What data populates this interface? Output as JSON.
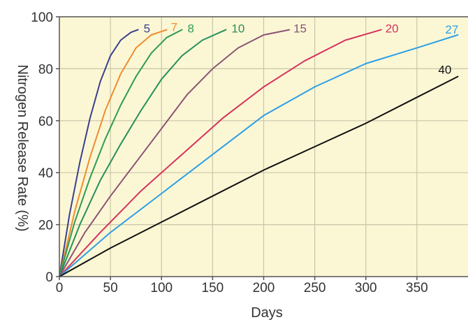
{
  "chart_data": {
    "type": "line",
    "title": "",
    "xlabel": "Days",
    "ylabel": "Nitrogen Release Rate (%)",
    "xlim": [
      0,
      400
    ],
    "ylim": [
      0,
      100
    ],
    "x_ticks": [
      "0",
      "50",
      "100",
      "150",
      "200",
      "250",
      "300",
      "350"
    ],
    "y_ticks": [
      "0",
      "20",
      "40",
      "60",
      "80",
      "100"
    ],
    "grid": true,
    "background": "#fbf7d5",
    "series": [
      {
        "name": "5",
        "color": "#3a3f8f",
        "x": [
          0,
          10,
          20,
          30,
          40,
          50,
          60,
          70,
          77
        ],
        "y": [
          0,
          24,
          44,
          61,
          75,
          85,
          91,
          94,
          95
        ]
      },
      {
        "name": "7",
        "color": "#f08c2e",
        "x": [
          0,
          15,
          30,
          45,
          60,
          75,
          90,
          105
        ],
        "y": [
          0,
          25,
          46,
          64,
          78,
          88,
          93,
          95
        ]
      },
      {
        "name": "8",
        "color": "#2e9c54",
        "x": [
          0,
          15,
          30,
          45,
          60,
          75,
          90,
          105,
          120
        ],
        "y": [
          0,
          21,
          38,
          53,
          66,
          77,
          86,
          92,
          95
        ]
      },
      {
        "name": "10",
        "color": "#27905a",
        "x": [
          0,
          20,
          40,
          60,
          80,
          100,
          120,
          140,
          163
        ],
        "y": [
          0,
          20,
          37,
          51,
          64,
          76,
          85,
          91,
          95
        ]
      },
      {
        "name": "15",
        "color": "#8c5474",
        "x": [
          0,
          25,
          50,
          75,
          100,
          125,
          150,
          175,
          200,
          225
        ],
        "y": [
          0,
          17,
          31,
          44,
          57,
          70,
          80,
          88,
          93,
          95
        ]
      },
      {
        "name": "20",
        "color": "#d6325c",
        "x": [
          0,
          40,
          80,
          120,
          160,
          200,
          240,
          280,
          315
        ],
        "y": [
          0,
          17,
          33,
          47,
          61,
          73,
          83,
          91,
          95
        ]
      },
      {
        "name": "27",
        "color": "#2d9fe6",
        "x": [
          0,
          50,
          100,
          150,
          200,
          250,
          300,
          350,
          390
        ],
        "y": [
          0,
          17,
          32,
          47,
          62,
          73,
          82,
          88,
          93
        ]
      },
      {
        "name": "40",
        "color": "#111111",
        "x": [
          0,
          50,
          100,
          150,
          200,
          250,
          300,
          350,
          390
        ],
        "y": [
          0,
          11,
          21,
          31,
          41,
          50,
          59,
          69,
          77
        ]
      }
    ]
  }
}
